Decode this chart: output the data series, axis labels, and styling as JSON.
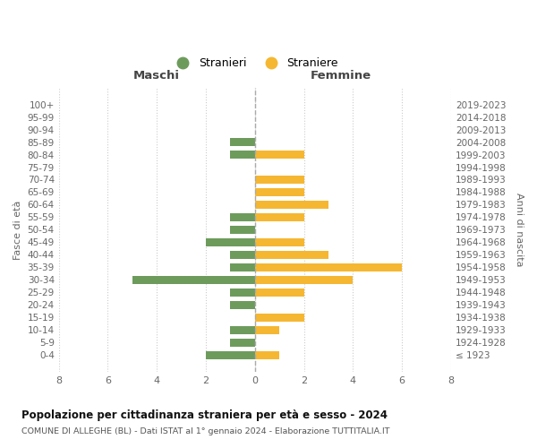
{
  "age_groups": [
    "100+",
    "95-99",
    "90-94",
    "85-89",
    "80-84",
    "75-79",
    "70-74",
    "65-69",
    "60-64",
    "55-59",
    "50-54",
    "45-49",
    "40-44",
    "35-39",
    "30-34",
    "25-29",
    "20-24",
    "15-19",
    "10-14",
    "5-9",
    "0-4"
  ],
  "birth_years": [
    "≤ 1923",
    "1924-1928",
    "1929-1933",
    "1934-1938",
    "1939-1943",
    "1944-1948",
    "1949-1953",
    "1954-1958",
    "1959-1963",
    "1964-1968",
    "1969-1973",
    "1974-1978",
    "1979-1983",
    "1984-1988",
    "1989-1993",
    "1994-1998",
    "1999-2003",
    "2004-2008",
    "2009-2013",
    "2014-2018",
    "2019-2023"
  ],
  "males": [
    0,
    0,
    0,
    1,
    1,
    0,
    0,
    0,
    0,
    1,
    1,
    2,
    1,
    1,
    5,
    1,
    1,
    0,
    1,
    1,
    2
  ],
  "females": [
    0,
    0,
    0,
    0,
    2,
    0,
    2,
    2,
    3,
    2,
    0,
    2,
    3,
    6,
    4,
    2,
    0,
    2,
    1,
    0,
    1
  ],
  "male_color": "#6d9b5c",
  "female_color": "#f5b731",
  "title": "Popolazione per cittadinanza straniera per età e sesso - 2024",
  "subtitle": "COMUNE DI ALLEGHE (BL) - Dati ISTAT al 1° gennaio 2024 - Elaborazione TUTTITALIA.IT",
  "ylabel_left": "Fasce di età",
  "ylabel_right": "Anni di nascita",
  "xlabel_left": "Maschi",
  "xlabel_right": "Femmine",
  "legend_stranieri": "Stranieri",
  "legend_straniere": "Straniere",
  "xlim": 8,
  "background_color": "#ffffff",
  "grid_color": "#cccccc"
}
